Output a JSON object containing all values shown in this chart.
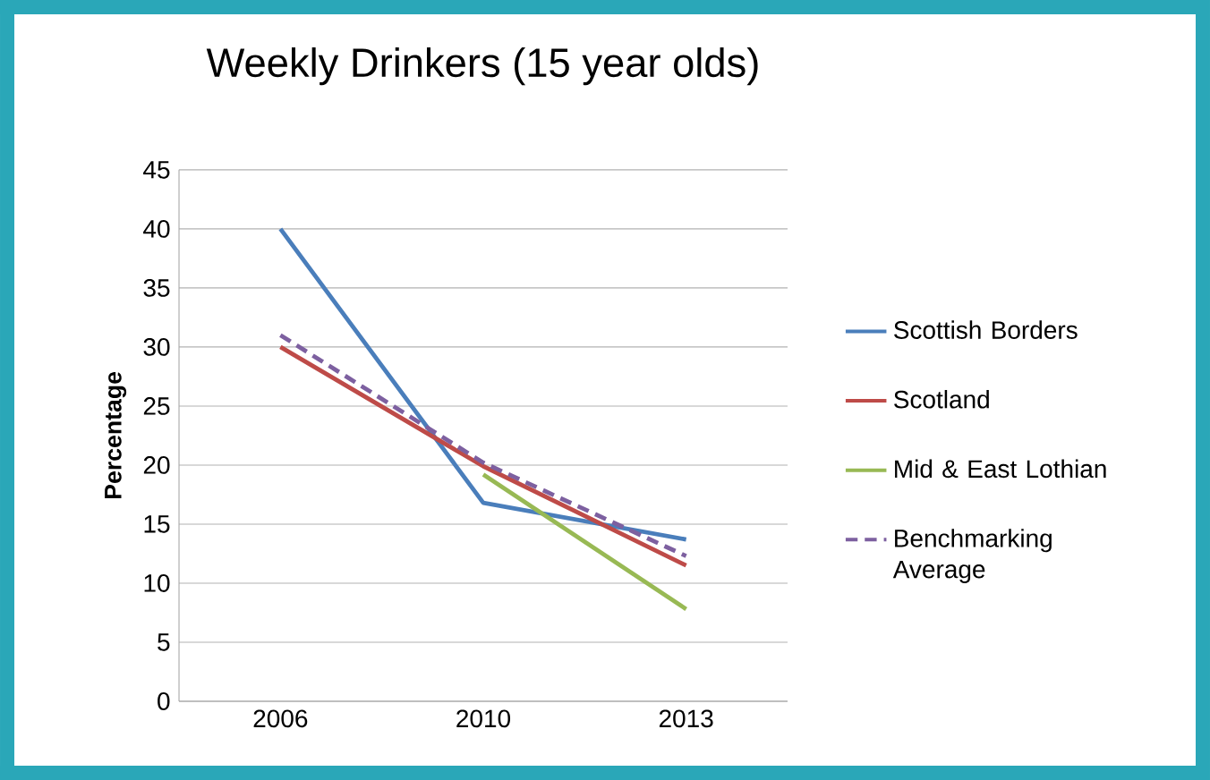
{
  "chart_data": {
    "type": "line",
    "title": "Weekly Drinkers (15 year olds)",
    "ylabel": "Percentage",
    "categories": [
      "2006",
      "2010",
      "2013"
    ],
    "series": [
      {
        "name": "Scottish Borders",
        "color": "#4a7ebb",
        "values": [
          40,
          16.8,
          13.7
        ]
      },
      {
        "name": "Scotland",
        "color": "#be4b48",
        "values": [
          30,
          19.9,
          11.5
        ]
      },
      {
        "name": "Mid & East Lothian",
        "color": "#98b954",
        "values": [
          null,
          19.2,
          7.8
        ]
      },
      {
        "name": "Benchmarking Average",
        "color": "#7d60a0",
        "values": [
          31,
          20.2,
          12.3
        ],
        "line_style": "dashed"
      }
    ],
    "ylim": [
      0,
      45
    ],
    "yticks": [
      0,
      5,
      10,
      15,
      20,
      25,
      30,
      35,
      40,
      45
    ],
    "grid": "y",
    "legend": "right",
    "marker": "none"
  }
}
